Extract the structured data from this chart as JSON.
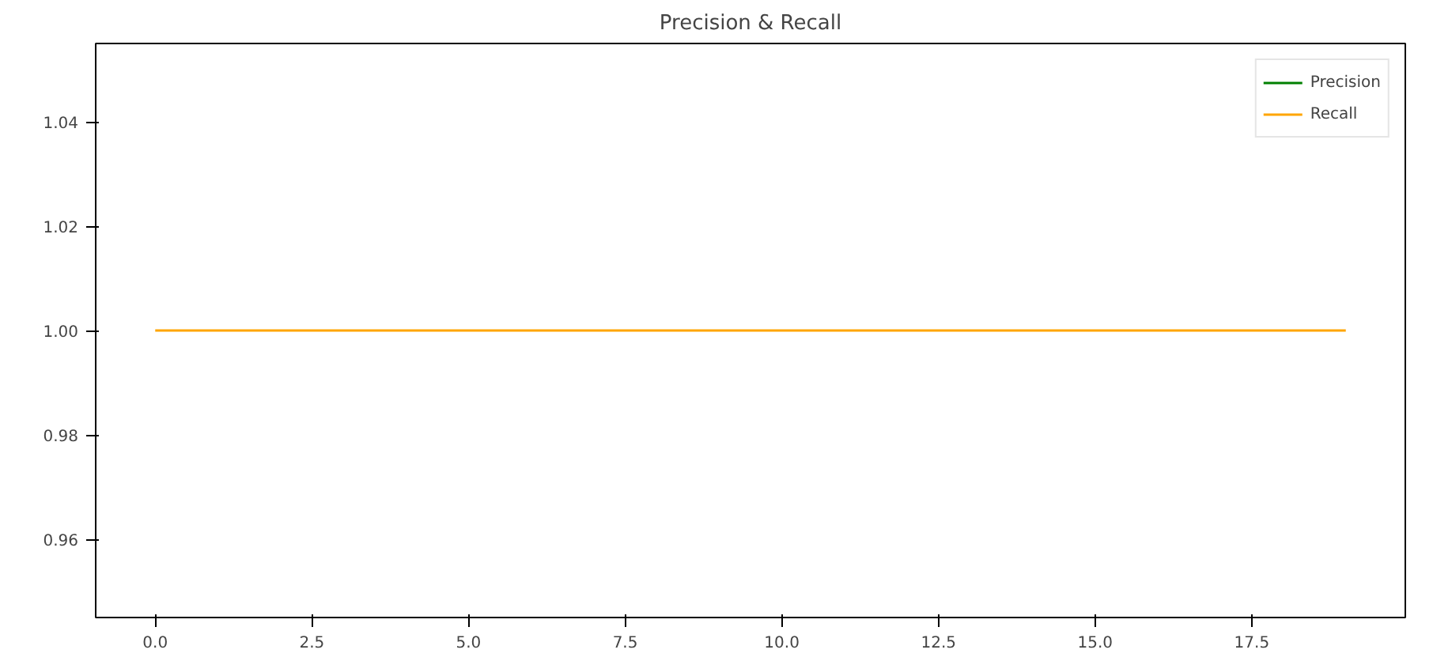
{
  "chart_data": {
    "type": "line",
    "title": "Precision & Recall",
    "x": [
      0,
      19
    ],
    "series": [
      {
        "name": "Precision",
        "color": "#008000",
        "values": [
          null,
          null
        ]
      },
      {
        "name": "Recall",
        "color": "#ffa500",
        "values": [
          1,
          1
        ]
      }
    ],
    "xlim": [
      -0.95,
      19.95
    ],
    "xticks": [
      {
        "value": 0,
        "label": "0.0"
      },
      {
        "value": 2.5,
        "label": "2.5"
      },
      {
        "value": 5,
        "label": "5.0"
      },
      {
        "value": 7.5,
        "label": "7.5"
      },
      {
        "value": 10,
        "label": "10.0"
      },
      {
        "value": 12.5,
        "label": "12.5"
      },
      {
        "value": 15,
        "label": "15.0"
      },
      {
        "value": 17.5,
        "label": "17.5"
      }
    ],
    "ylim": [
      0.945,
      1.055
    ],
    "yticks": [
      {
        "value": 0.96,
        "label": "0.96"
      },
      {
        "value": 0.98,
        "label": "0.98"
      },
      {
        "value": 1.0,
        "label": "1.00"
      },
      {
        "value": 1.02,
        "label": "1.02"
      },
      {
        "value": 1.04,
        "label": "1.04"
      }
    ],
    "grid": false,
    "legend": "top right",
    "line_style": "solid"
  }
}
